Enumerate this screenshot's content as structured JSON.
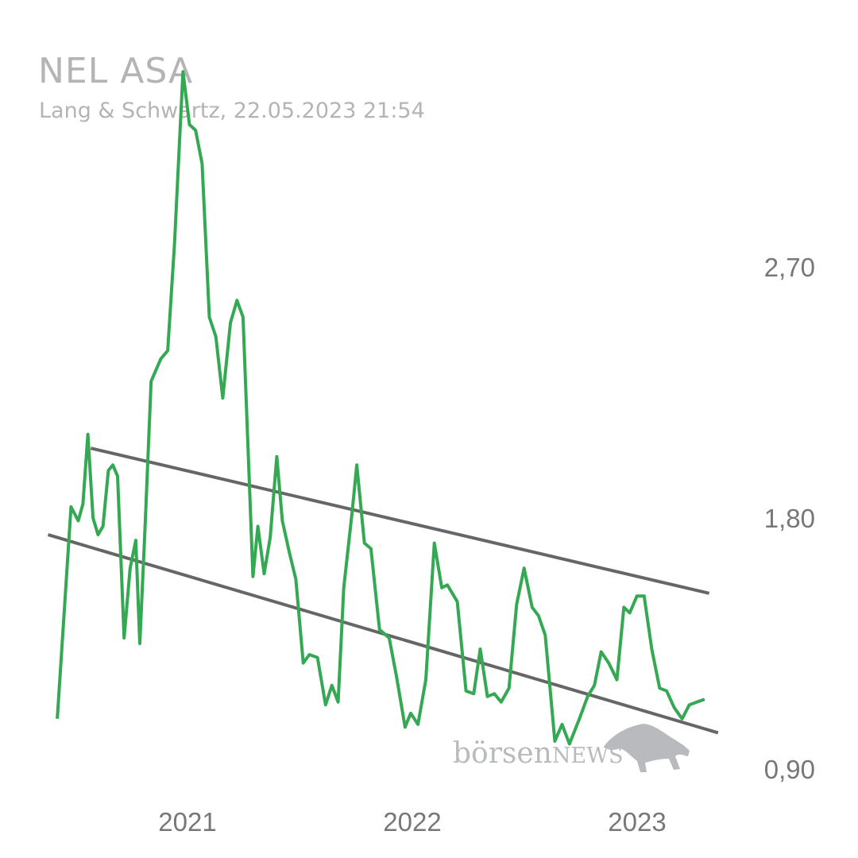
{
  "header": {
    "title": "NEL ASA",
    "subtitle": "Lang & Schwartz, 22.05.2023 21:54"
  },
  "watermark": {
    "text_lower": "börsen",
    "text_upper": "NEWS",
    "icon": "bull-icon"
  },
  "colors": {
    "price_line": "#34a853",
    "trend_lines": "#666666",
    "axis_text": "#777777",
    "title_text": "#b4b4b4"
  },
  "chart_data": {
    "type": "line",
    "title": "NEL ASA",
    "subtitle": "Lang & Schwartz, 22.05.2023 21:54",
    "y_tick_labels": [
      "2,70",
      "1,80",
      "0,90"
    ],
    "y_ticks": [
      2.7,
      1.8,
      0.9
    ],
    "x_tick_labels": [
      "2021",
      "2022",
      "2023"
    ],
    "x_ticks": [
      2021.0,
      2022.0,
      2023.0
    ],
    "ylim": [
      0.9,
      3.3
    ],
    "xlim": [
      2020.375,
      2023.485
    ],
    "grid": false,
    "legend": "none",
    "series": [
      {
        "values": [
          [
            2020.421,
            1.08
          ],
          [
            2020.482,
            1.84
          ],
          [
            2020.514,
            1.79
          ],
          [
            2020.535,
            1.85
          ],
          [
            2020.557,
            2.1
          ],
          [
            2020.58,
            1.8
          ],
          [
            2020.602,
            1.74
          ],
          [
            2020.624,
            1.77
          ],
          [
            2020.648,
            1.97
          ],
          [
            2020.668,
            1.99
          ],
          [
            2020.689,
            1.95
          ],
          [
            2020.718,
            1.37
          ],
          [
            2020.745,
            1.62
          ],
          [
            2020.77,
            1.72
          ],
          [
            2020.788,
            1.35
          ],
          [
            2020.812,
            1.78
          ],
          [
            2020.838,
            2.29
          ],
          [
            2020.881,
            2.37
          ],
          [
            2020.912,
            2.4
          ],
          [
            2020.942,
            2.78
          ],
          [
            2020.98,
            3.4
          ],
          [
            2021.009,
            3.21
          ],
          [
            2021.036,
            3.19
          ],
          [
            2021.065,
            3.07
          ],
          [
            2021.097,
            2.52
          ],
          [
            2021.126,
            2.45
          ],
          [
            2021.157,
            2.23
          ],
          [
            2021.191,
            2.5
          ],
          [
            2021.22,
            2.58
          ],
          [
            2021.247,
            2.52
          ],
          [
            2021.291,
            1.59
          ],
          [
            2021.313,
            1.77
          ],
          [
            2021.341,
            1.6
          ],
          [
            2021.368,
            1.73
          ],
          [
            2021.397,
            2.02
          ],
          [
            2021.422,
            1.79
          ],
          [
            2021.452,
            1.68
          ],
          [
            2021.482,
            1.58
          ],
          [
            2021.515,
            1.28
          ],
          [
            2021.542,
            1.31
          ],
          [
            2021.578,
            1.3
          ],
          [
            2021.614,
            1.13
          ],
          [
            2021.642,
            1.2
          ],
          [
            2021.67,
            1.14
          ],
          [
            2021.695,
            1.55
          ],
          [
            2021.732,
            1.82
          ],
          [
            2021.753,
            1.99
          ],
          [
            2021.787,
            1.71
          ],
          [
            2021.816,
            1.69
          ],
          [
            2021.854,
            1.4
          ],
          [
            2021.897,
            1.37
          ],
          [
            2021.93,
            1.23
          ],
          [
            2021.968,
            1.05
          ],
          [
            2021.993,
            1.1
          ],
          [
            2022.025,
            1.06
          ],
          [
            2022.06,
            1.22
          ],
          [
            2022.098,
            1.71
          ],
          [
            2022.131,
            1.55
          ],
          [
            2022.156,
            1.56
          ],
          [
            2022.2,
            1.5
          ],
          [
            2022.239,
            1.18
          ],
          [
            2022.273,
            1.17
          ],
          [
            2022.302,
            1.33
          ],
          [
            2022.334,
            1.16
          ],
          [
            2022.365,
            1.17
          ],
          [
            2022.395,
            1.14
          ],
          [
            2022.43,
            1.19
          ],
          [
            2022.464,
            1.49
          ],
          [
            2022.497,
            1.62
          ],
          [
            2022.533,
            1.48
          ],
          [
            2022.561,
            1.45
          ],
          [
            2022.591,
            1.38
          ],
          [
            2022.634,
            1.0
          ],
          [
            2022.666,
            1.06
          ],
          [
            2022.699,
            0.99
          ],
          [
            2022.743,
            1.08
          ],
          [
            2022.78,
            1.16
          ],
          [
            2022.81,
            1.2
          ],
          [
            2022.84,
            1.32
          ],
          [
            2022.874,
            1.28
          ],
          [
            2022.91,
            1.22
          ],
          [
            2022.941,
            1.48
          ],
          [
            2022.967,
            1.46
          ],
          [
            2022.999,
            1.52
          ],
          [
            2023.031,
            1.52
          ],
          [
            2023.065,
            1.33
          ],
          [
            2023.1,
            1.19
          ],
          [
            2023.131,
            1.18
          ],
          [
            2023.165,
            1.12
          ],
          [
            2023.2,
            1.08
          ],
          [
            2023.232,
            1.13
          ],
          [
            2023.265,
            1.14
          ],
          [
            2023.3,
            1.15
          ]
        ]
      }
    ],
    "trend_lines": [
      {
        "points": [
          [
            2020.57,
            2.05
          ],
          [
            2023.32,
            1.53
          ]
        ]
      },
      {
        "points": [
          [
            2020.38,
            1.74
          ],
          [
            2023.36,
            1.03
          ]
        ]
      }
    ]
  }
}
